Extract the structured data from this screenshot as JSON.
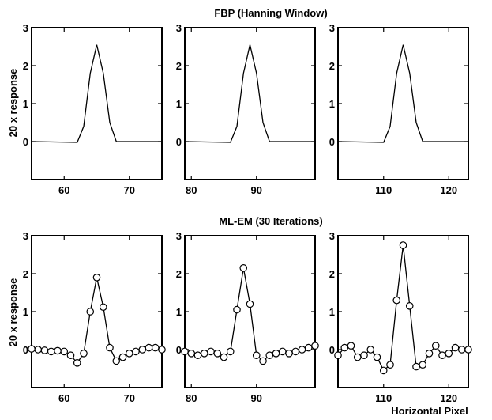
{
  "row_titles": [
    "FBP (Hanning Window)",
    "ML-EM (30 Iterations)"
  ],
  "ylabels": [
    "20 x response",
    "20 x response"
  ],
  "xlabel": "Horizontal Pixel",
  "chart_data": [
    {
      "type": "line",
      "row": 0,
      "col": 0,
      "markers": false,
      "xlim": [
        55,
        75
      ],
      "ylim": [
        -1,
        3
      ],
      "xticks": [
        60,
        70
      ],
      "yticks": [
        0,
        1,
        2,
        3
      ],
      "x": [
        55,
        62,
        63,
        64,
        65,
        66,
        67,
        68,
        75
      ],
      "y": [
        0,
        -0.02,
        0.4,
        1.8,
        2.55,
        1.8,
        0.5,
        0,
        0
      ]
    },
    {
      "type": "line",
      "row": 0,
      "col": 1,
      "markers": false,
      "xlim": [
        79,
        99
      ],
      "ylim": [
        -1,
        3
      ],
      "xticks": [
        80,
        90
      ],
      "yticks": [
        0,
        1,
        2,
        3
      ],
      "x": [
        79,
        86,
        87,
        88,
        89,
        90,
        91,
        92,
        99
      ],
      "y": [
        0,
        -0.02,
        0.4,
        1.8,
        2.55,
        1.8,
        0.5,
        0,
        0
      ]
    },
    {
      "type": "line",
      "row": 0,
      "col": 2,
      "markers": false,
      "xlim": [
        103,
        123
      ],
      "ylim": [
        -1,
        3
      ],
      "xticks": [
        110,
        120
      ],
      "yticks": [
        0,
        1,
        2,
        3
      ],
      "x": [
        103,
        110,
        111,
        112,
        113,
        114,
        115,
        116,
        123
      ],
      "y": [
        0,
        -0.02,
        0.4,
        1.8,
        2.55,
        1.8,
        0.5,
        0,
        0
      ]
    },
    {
      "type": "line",
      "row": 1,
      "col": 0,
      "markers": true,
      "xlim": [
        55,
        75
      ],
      "ylim": [
        -1,
        3
      ],
      "xticks": [
        60,
        70
      ],
      "yticks": [
        0,
        1,
        2,
        3
      ],
      "x": [
        55,
        56,
        57,
        58,
        59,
        60,
        61,
        62,
        63,
        64,
        65,
        66,
        67,
        68,
        69,
        70,
        71,
        72,
        73,
        74,
        75
      ],
      "y": [
        0.02,
        0.0,
        -0.02,
        -0.05,
        -0.03,
        -0.05,
        -0.15,
        -0.35,
        -0.1,
        1.0,
        1.9,
        1.12,
        0.05,
        -0.3,
        -0.2,
        -0.1,
        -0.05,
        0.0,
        0.05,
        0.05,
        0.0
      ]
    },
    {
      "type": "line",
      "row": 1,
      "col": 1,
      "markers": true,
      "xlim": [
        79,
        99
      ],
      "ylim": [
        -1,
        3
      ],
      "xticks": [
        80,
        90
      ],
      "yticks": [
        0,
        1,
        2,
        3
      ],
      "x": [
        79,
        80,
        81,
        82,
        83,
        84,
        85,
        86,
        87,
        88,
        89,
        90,
        91,
        92,
        93,
        94,
        95,
        96,
        97,
        98,
        99
      ],
      "y": [
        -0.05,
        -0.1,
        -0.15,
        -0.1,
        -0.05,
        -0.1,
        -0.2,
        -0.05,
        1.05,
        2.15,
        1.2,
        -0.15,
        -0.3,
        -0.15,
        -0.1,
        -0.05,
        -0.1,
        -0.05,
        0.0,
        0.05,
        0.1
      ]
    },
    {
      "type": "line",
      "row": 1,
      "col": 2,
      "markers": true,
      "xlim": [
        103,
        123
      ],
      "ylim": [
        -1,
        3
      ],
      "xticks": [
        110,
        120
      ],
      "yticks": [
        0,
        1,
        2,
        3
      ],
      "x": [
        103,
        104,
        105,
        106,
        107,
        108,
        109,
        110,
        111,
        112,
        113,
        114,
        115,
        116,
        117,
        118,
        119,
        120,
        121,
        122,
        123
      ],
      "y": [
        -0.15,
        0.05,
        0.1,
        -0.2,
        -0.15,
        0.0,
        -0.2,
        -0.55,
        -0.4,
        1.3,
        2.75,
        1.15,
        -0.45,
        -0.4,
        -0.1,
        0.1,
        -0.15,
        -0.1,
        0.05,
        0.0,
        0.0
      ]
    }
  ]
}
